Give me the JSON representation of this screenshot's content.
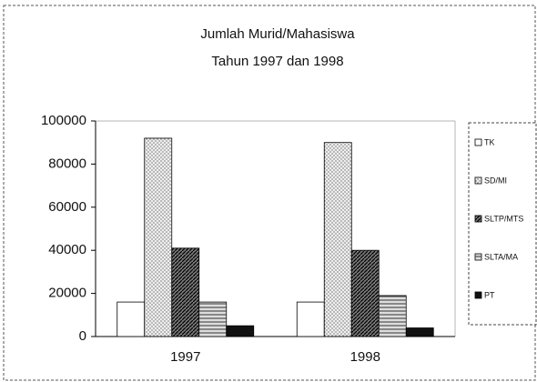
{
  "chart_data": {
    "type": "bar",
    "title": "Jumlah Murid/Mahasiswa",
    "subtitle": "Tahun 1997 dan 1998",
    "categories": [
      "1997",
      "1998"
    ],
    "series": [
      {
        "name": "TK",
        "color": "#ffffff",
        "values": [
          16000,
          16000
        ]
      },
      {
        "name": "SD/MI",
        "color": "#eeeeee",
        "values": [
          92000,
          90000
        ]
      },
      {
        "name": "SLTP/MTS",
        "color": "#777777",
        "values": [
          41000,
          40000
        ]
      },
      {
        "name": "SLTA/MA",
        "color": "#dddddd",
        "values": [
          16000,
          19000
        ]
      },
      {
        "name": "PT",
        "color": "#111111",
        "values": [
          5000,
          4000
        ]
      }
    ],
    "ylim": [
      0,
      100000
    ],
    "yticks": [
      0,
      20000,
      40000,
      60000,
      80000,
      100000
    ],
    "grid": false,
    "legend": "right"
  }
}
